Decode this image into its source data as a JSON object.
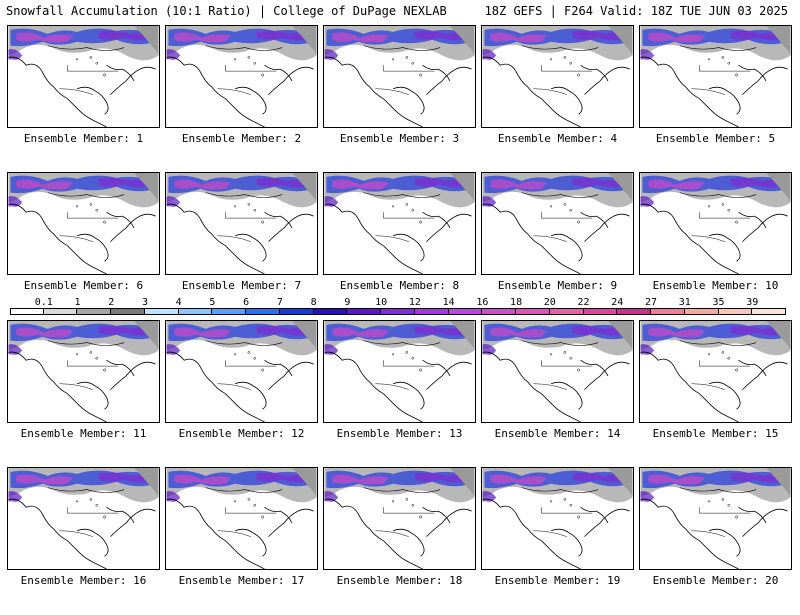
{
  "header": {
    "left_title": "Snowfall Accumulation (10:1 Ratio) | College of DuPage NEXLAB",
    "right_title": "18Z GEFS | F264 Valid: 18Z TUE JUN 03 2025"
  },
  "members": [
    "Ensemble Member: 1",
    "Ensemble Member: 2",
    "Ensemble Member: 3",
    "Ensemble Member: 4",
    "Ensemble Member: 5",
    "Ensemble Member: 6",
    "Ensemble Member: 7",
    "Ensemble Member: 8",
    "Ensemble Member: 9",
    "Ensemble Member: 10",
    "Ensemble Member: 11",
    "Ensemble Member: 12",
    "Ensemble Member: 13",
    "Ensemble Member: 14",
    "Ensemble Member: 15",
    "Ensemble Member: 16",
    "Ensemble Member: 17",
    "Ensemble Member: 18",
    "Ensemble Member: 19",
    "Ensemble Member: 20"
  ],
  "scale": {
    "labels": [
      "0.1",
      "1",
      "2",
      "3",
      "4",
      "5",
      "6",
      "7",
      "8",
      "9",
      "10",
      "12",
      "14",
      "16",
      "18",
      "20",
      "22",
      "24",
      "27",
      "31",
      "35",
      "39"
    ],
    "colors": [
      "#ffffff",
      "#d9d9d9",
      "#a6a6a6",
      "#7a7a7a",
      "#bfe3ff",
      "#8fc6ff",
      "#5aa0f5",
      "#2f6fe8",
      "#1a3bd0",
      "#2a12b0",
      "#5a18c0",
      "#7d2fd0",
      "#9c3ed6",
      "#b44bd8",
      "#c851c8",
      "#d957b8",
      "#e163a8",
      "#d8479a",
      "#c2338a",
      "#e87f9c",
      "#f3a9a0",
      "#f7c8b8",
      "#fbe4d6"
    ]
  }
}
